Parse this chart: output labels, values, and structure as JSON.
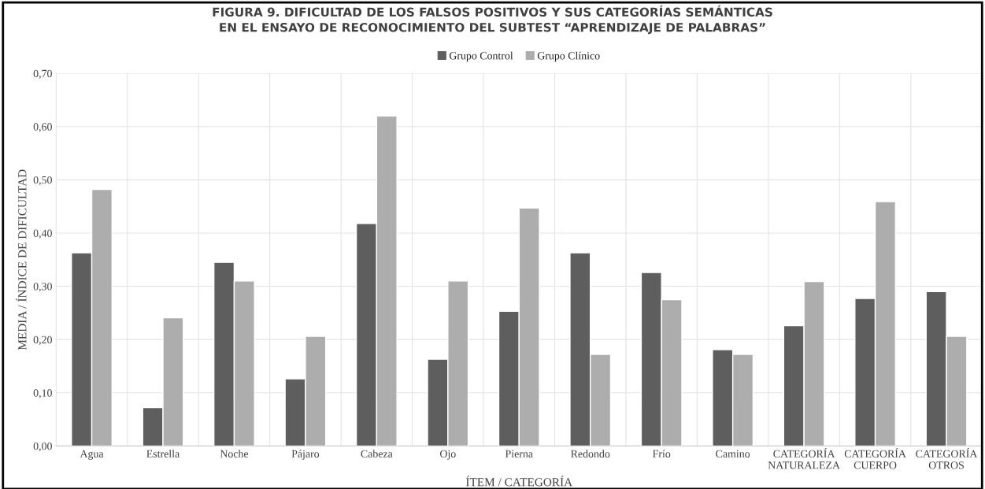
{
  "chart_data": {
    "type": "bar",
    "title": "FIGURA 9. DIFICULTAD DE LOS FALSOS POSITIVOS Y SUS CATEGORÍAS SEMÁNTICAS\nEN EL ENSAYO DE RECONOCIMIENTO DEL SUBTEST “APRENDIZAJE DE PALABRAS”",
    "xlabel": "ÍTEM / CATEGORÍA",
    "ylabel": "MEDIA / ÍNDICE DE DIFICULTAD",
    "categories": [
      "Agua",
      "Estrella",
      "Noche",
      "Pájaro",
      "Cabeza",
      "Ojo",
      "Pierna",
      "Redondo",
      "Frío",
      "Camino",
      "CATEGORÍA\nNATURALEZA",
      "CATEGORÍA\nCUERPO",
      "CATEGORÍA\nOTROS"
    ],
    "series": [
      {
        "name": "Grupo Control",
        "color": "#5e5e5e",
        "values": [
          0.363,
          0.072,
          0.345,
          0.126,
          0.418,
          0.163,
          0.253,
          0.363,
          0.326,
          0.181,
          0.226,
          0.277,
          0.29
        ]
      },
      {
        "name": "Grupo Clínico",
        "color": "#adadad",
        "values": [
          0.482,
          0.241,
          0.31,
          0.206,
          0.62,
          0.31,
          0.447,
          0.172,
          0.275,
          0.172,
          0.309,
          0.459,
          0.206
        ]
      }
    ],
    "ylim": [
      0,
      0.7
    ],
    "yticks": [
      {
        "value": 0,
        "label": "0,00"
      },
      {
        "value": 0.1,
        "label": "0,10"
      },
      {
        "value": 0.2,
        "label": "0,20"
      },
      {
        "value": 0.3,
        "label": "0,30"
      },
      {
        "value": 0.4,
        "label": "0,40"
      },
      {
        "value": 0.5,
        "label": "0,50"
      },
      {
        "value": 0.6,
        "label": "0,60"
      },
      {
        "value": 0.7,
        "label": "0,70"
      }
    ],
    "grid": true,
    "legend": "top"
  }
}
